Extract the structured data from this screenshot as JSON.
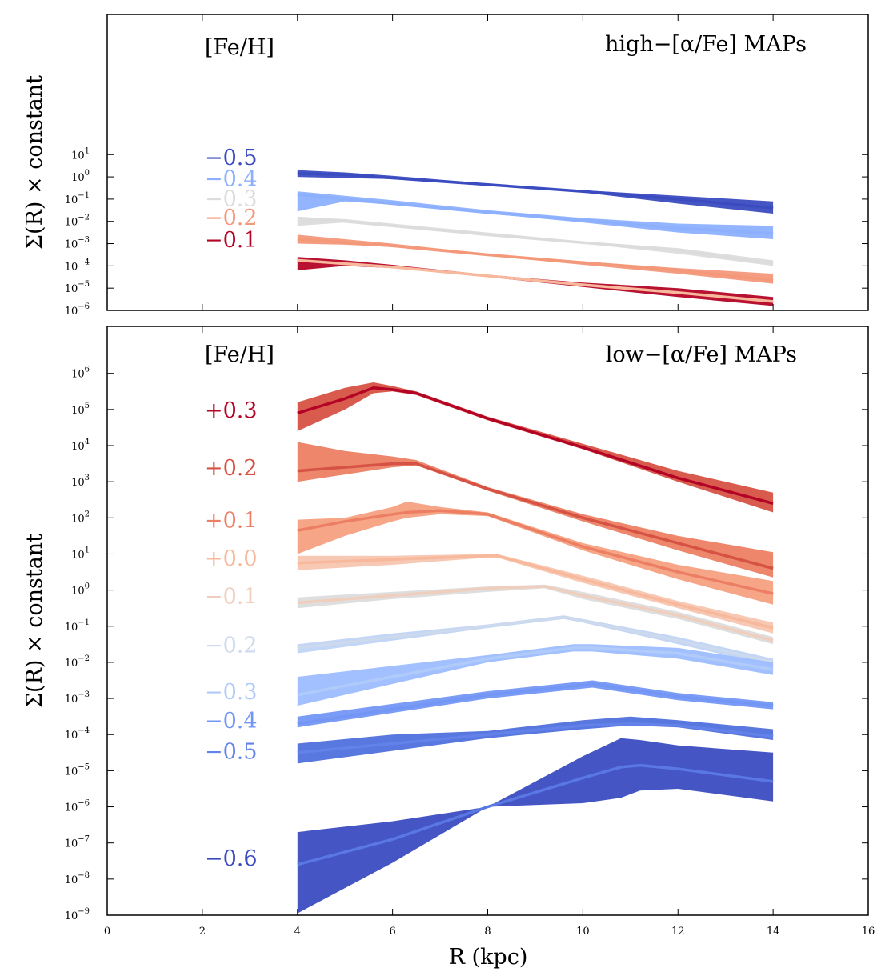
{
  "chart_data": [
    {
      "type": "area",
      "title": "high−[α/Fe] MAPs",
      "xlabel": "R (kpc)",
      "ylabel": "Σ(R) × constant",
      "yscale": "log",
      "xlim": [
        0,
        16
      ],
      "ylim_log10": [
        -6,
        7.3
      ],
      "x_ticks": [
        "0",
        "2",
        "4",
        "6",
        "8",
        "10",
        "12",
        "14",
        "16"
      ],
      "y_tick_exponents": [
        "1",
        "0",
        "-1",
        "-2",
        "-3",
        "-4",
        "-5",
        "-6"
      ],
      "legend_title": "[Fe/H]",
      "series": [
        {
          "name": "−0.5",
          "color": "#3b4cc0",
          "label_log10": 0.9,
          "x": [
            4,
            5,
            6,
            8,
            10,
            12,
            14
          ],
          "median_log10": [
            0.15,
            0.1,
            -0.05,
            -0.35,
            -0.65,
            -1.0,
            -1.4
          ],
          "lower_log10": [
            0.0,
            -0.05,
            -0.1,
            -0.4,
            -0.7,
            -1.2,
            -1.65
          ],
          "upper_log10": [
            0.3,
            0.2,
            0.05,
            -0.3,
            -0.6,
            -0.85,
            -1.1
          ]
        },
        {
          "name": "−0.4",
          "color": "#8db0fe",
          "label_log10": -0.05,
          "x": [
            4,
            5,
            6,
            8,
            10,
            12,
            14
          ],
          "median_log10": [
            -0.8,
            -1.0,
            -1.2,
            -1.6,
            -1.95,
            -2.3,
            -2.55
          ],
          "lower_log10": [
            -1.55,
            -1.1,
            -1.25,
            -1.65,
            -2.05,
            -2.5,
            -2.8
          ],
          "upper_log10": [
            -0.65,
            -0.85,
            -1.05,
            -1.5,
            -1.85,
            -2.1,
            -2.2
          ]
        },
        {
          "name": "−0.3",
          "color": "#dddcdc",
          "label_log10": -0.95,
          "x": [
            4,
            5,
            6,
            8,
            10,
            12,
            14
          ],
          "median_log10": [
            -1.85,
            -2.0,
            -2.2,
            -2.6,
            -2.95,
            -3.3,
            -3.9
          ],
          "lower_log10": [
            -2.2,
            -2.05,
            -2.25,
            -2.65,
            -3.0,
            -3.45,
            -4.0
          ],
          "upper_log10": [
            -1.8,
            -1.9,
            -2.1,
            -2.5,
            -2.9,
            -3.2,
            -3.75
          ]
        },
        {
          "name": "−0.2",
          "color": "#f4987a",
          "label_log10": -1.8,
          "x": [
            4,
            5,
            6,
            8,
            10,
            12,
            14
          ],
          "median_log10": [
            -2.8,
            -2.95,
            -3.1,
            -3.5,
            -3.85,
            -4.2,
            -4.65
          ],
          "lower_log10": [
            -3.0,
            -3.05,
            -3.15,
            -3.55,
            -3.95,
            -4.35,
            -4.8
          ],
          "upper_log10": [
            -2.6,
            -2.8,
            -3.0,
            -3.45,
            -3.8,
            -4.1,
            -4.35
          ]
        },
        {
          "name": "−0.1",
          "color": "#b40426",
          "label_log10": -2.8,
          "x": [
            4,
            5,
            6,
            8,
            10,
            12,
            14
          ],
          "median_log10": [
            -3.75,
            -3.9,
            -4.05,
            -4.45,
            -4.85,
            -5.2,
            -5.6
          ],
          "lower_log10": [
            -4.2,
            -4.0,
            -4.1,
            -4.5,
            -4.95,
            -5.4,
            -5.8
          ],
          "upper_log10": [
            -3.6,
            -3.75,
            -3.95,
            -4.4,
            -4.75,
            -5.0,
            -5.4
          ]
        }
      ],
      "median_color": {
        "−0.1": "#f7b89c"
      }
    },
    {
      "type": "area",
      "title": "low−[α/Fe] MAPs",
      "xlabel": "R (kpc)",
      "ylabel": "Σ(R) × constant",
      "yscale": "log",
      "xlim": [
        0,
        16
      ],
      "ylim_log10": [
        -9,
        7.3
      ],
      "x_ticks": [
        "0",
        "2",
        "4",
        "6",
        "8",
        "10",
        "12",
        "14",
        "16"
      ],
      "y_tick_exponents": [
        "6",
        "5",
        "4",
        "3",
        "2",
        "1",
        "0",
        "-1",
        "-2",
        "-3",
        "-4",
        "-5",
        "-6",
        "-7",
        "-8",
        "-9"
      ],
      "legend_title": "[Fe/H]",
      "series": [
        {
          "name": "+0.3",
          "color": "#b40426",
          "fill": "#d65244",
          "label_log10": 5.0,
          "x": [
            4,
            5,
            5.6,
            6,
            6.5,
            8,
            10,
            12,
            14
          ],
          "median_log10": [
            4.9,
            5.3,
            5.6,
            5.55,
            5.45,
            4.75,
            3.95,
            3.1,
            2.4
          ],
          "lower_log10": [
            4.4,
            5.0,
            5.45,
            5.5,
            5.4,
            4.7,
            3.9,
            3.0,
            2.15
          ],
          "upper_log10": [
            5.2,
            5.6,
            5.75,
            5.65,
            5.5,
            4.8,
            4.05,
            3.3,
            2.7
          ]
        },
        {
          "name": "+0.2",
          "color": "#d65244",
          "fill": "#ec7f63",
          "label_log10": 3.4,
          "x": [
            4,
            5,
            6,
            6.5,
            8,
            10,
            12,
            14
          ],
          "median_log10": [
            3.3,
            3.4,
            3.5,
            3.5,
            2.8,
            2.0,
            1.3,
            0.6
          ],
          "lower_log10": [
            3.0,
            3.2,
            3.4,
            3.45,
            2.75,
            1.9,
            1.1,
            0.35
          ],
          "upper_log10": [
            4.1,
            3.85,
            3.7,
            3.6,
            2.85,
            2.1,
            1.5,
            1.05
          ]
        },
        {
          "name": "+0.1",
          "color": "#ec7f63",
          "fill": "#f5a081",
          "label_log10": 1.95,
          "x": [
            4,
            5,
            6,
            6.3,
            7,
            8,
            10,
            12,
            14
          ],
          "median_log10": [
            1.65,
            1.9,
            2.1,
            2.15,
            2.2,
            2.1,
            1.2,
            0.5,
            -0.1
          ],
          "lower_log10": [
            1.0,
            1.5,
            1.9,
            2.0,
            2.1,
            2.05,
            1.1,
            0.3,
            -0.4
          ],
          "upper_log10": [
            1.95,
            2.0,
            2.3,
            2.45,
            2.3,
            2.15,
            1.3,
            0.7,
            0.25
          ]
        },
        {
          "name": "+0.0",
          "color": "#f7b89c",
          "fill": "#f7c6b0",
          "label_log10": 0.9,
          "x": [
            4,
            6,
            8,
            8.2,
            10,
            12,
            14
          ],
          "median_log10": [
            0.75,
            0.85,
            0.95,
            0.95,
            0.3,
            -0.4,
            -1.05
          ],
          "lower_log10": [
            0.55,
            0.7,
            0.9,
            0.9,
            0.2,
            -0.5,
            -1.2
          ],
          "upper_log10": [
            0.95,
            0.95,
            1.0,
            1.0,
            0.4,
            -0.3,
            -0.9
          ]
        },
        {
          "name": "−0.1",
          "color": "#efcebd",
          "fill": "#dddcdc",
          "label_log10": -0.15,
          "x": [
            4,
            6,
            8,
            9.2,
            10,
            12,
            14
          ],
          "median_log10": [
            -0.35,
            -0.15,
            0.05,
            0.1,
            -0.15,
            -0.7,
            -1.4
          ],
          "lower_log10": [
            -0.5,
            -0.25,
            -0.05,
            0.05,
            -0.25,
            -0.8,
            -1.5
          ],
          "upper_log10": [
            -0.2,
            -0.05,
            0.1,
            0.15,
            -0.05,
            -0.6,
            -1.3
          ]
        },
        {
          "name": "−0.2",
          "color": "#cdd9ec",
          "fill": "#c0d4f5",
          "label_log10": -1.5,
          "x": [
            4,
            6,
            8,
            9.6,
            10,
            12,
            14
          ],
          "median_log10": [
            -1.6,
            -1.3,
            -1.0,
            -0.75,
            -0.85,
            -1.4,
            -2.0
          ],
          "lower_log10": [
            -1.75,
            -1.4,
            -1.05,
            -0.8,
            -0.9,
            -1.5,
            -2.1
          ],
          "upper_log10": [
            -1.5,
            -1.2,
            -0.95,
            -0.7,
            -0.8,
            -1.3,
            -1.9
          ]
        },
        {
          "name": "−0.3",
          "color": "#b0cbf9",
          "fill": "#9dbdff",
          "label_log10": -2.8,
          "x": [
            4,
            6,
            8,
            9.8,
            10.2,
            12,
            14
          ],
          "median_log10": [
            -2.9,
            -2.4,
            -1.9,
            -1.6,
            -1.6,
            -1.75,
            -2.2
          ],
          "lower_log10": [
            -3.2,
            -2.6,
            -2.0,
            -1.7,
            -1.7,
            -1.9,
            -2.35
          ],
          "upper_log10": [
            -2.4,
            -2.1,
            -1.8,
            -1.5,
            -1.5,
            -1.6,
            -2.0
          ]
        },
        {
          "name": "−0.4",
          "color": "#7396f5",
          "fill": "#7396f5",
          "label_log10": -3.6,
          "x": [
            4,
            6,
            8,
            10.2,
            12,
            14
          ],
          "median_log10": [
            -3.7,
            -3.3,
            -2.9,
            -2.6,
            -2.95,
            -3.2
          ],
          "lower_log10": [
            -3.8,
            -3.4,
            -3.0,
            -2.7,
            -3.05,
            -3.3
          ],
          "upper_log10": [
            -3.5,
            -3.15,
            -2.8,
            -2.5,
            -2.85,
            -3.1
          ]
        },
        {
          "name": "−0.5",
          "color": "#6282ea",
          "fill": "#4f70dd",
          "label_log10": -4.45,
          "x": [
            4,
            6,
            8,
            10,
            11,
            12,
            14
          ],
          "median_log10": [
            -4.5,
            -4.25,
            -4.0,
            -3.75,
            -3.7,
            -3.75,
            -4.05
          ],
          "lower_log10": [
            -4.8,
            -4.45,
            -4.1,
            -3.85,
            -3.75,
            -3.8,
            -4.15
          ],
          "upper_log10": [
            -4.25,
            -4.0,
            -3.9,
            -3.6,
            -3.5,
            -3.6,
            -3.85
          ]
        },
        {
          "name": "−0.6",
          "color": "#3b4cc0",
          "fill": "#3b4cc0",
          "median_stroke": "#5a78e4",
          "label_log10": -7.4,
          "x": [
            4,
            6,
            8,
            10,
            10.8,
            11.2,
            12,
            14
          ],
          "median_log10": [
            -7.6,
            -6.9,
            -6.0,
            -5.2,
            -4.9,
            -4.85,
            -4.95,
            -5.3
          ],
          "lower_log10": [
            -8.95,
            -7.55,
            -6.0,
            -5.9,
            -5.75,
            -5.55,
            -5.5,
            -5.85
          ],
          "upper_log10": [
            -6.7,
            -6.4,
            -6.0,
            -4.6,
            -4.1,
            -4.15,
            -4.3,
            -4.5
          ]
        }
      ]
    }
  ]
}
